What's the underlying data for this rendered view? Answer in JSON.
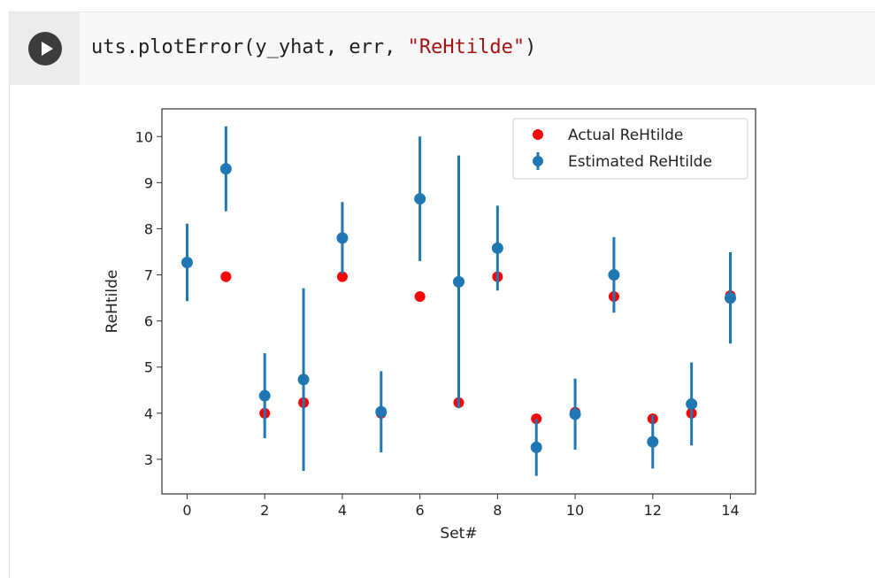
{
  "cell": {
    "run_button_icon": "play-icon",
    "code": {
      "prefix": "uts.plotError(y_yhat, err, ",
      "string_arg": "\"ReHtilde\"",
      "suffix": ")"
    }
  },
  "chart_data": {
    "type": "scatter",
    "xlabel": "Set#",
    "ylabel": "ReHtilde",
    "xlim": [
      -0.65,
      14.65
    ],
    "ylim": [
      2.25,
      10.6
    ],
    "xticks": [
      0,
      2,
      4,
      6,
      8,
      10,
      12,
      14
    ],
    "yticks": [
      3,
      4,
      5,
      6,
      7,
      8,
      9,
      10
    ],
    "grid": false,
    "legend_position": "top-right",
    "series": [
      {
        "name": "Actual ReHtilde",
        "color": "#ff0000",
        "marker": "circle",
        "x": [
          0,
          1,
          2,
          3,
          4,
          5,
          6,
          7,
          8,
          9,
          10,
          11,
          12,
          13,
          14
        ],
        "y": [
          7.27,
          6.96,
          4.0,
          4.23,
          6.96,
          4.0,
          6.53,
          4.23,
          6.96,
          3.88,
          4.02,
          6.53,
          3.88,
          4.0,
          6.55
        ]
      },
      {
        "name": "Estimated ReHtilde",
        "color": "#1f77b4",
        "marker": "circle",
        "error_bars": true,
        "x": [
          0,
          1,
          2,
          3,
          4,
          5,
          6,
          7,
          8,
          9,
          10,
          11,
          12,
          13,
          14
        ],
        "y": [
          7.27,
          9.3,
          4.38,
          4.73,
          7.8,
          4.03,
          8.65,
          6.85,
          7.58,
          3.26,
          3.98,
          7.0,
          3.38,
          4.2,
          6.5
        ],
        "err": [
          0.84,
          0.92,
          0.92,
          1.98,
          0.78,
          0.88,
          1.35,
          2.74,
          0.92,
          0.62,
          0.77,
          0.82,
          0.58,
          0.9,
          0.99
        ]
      }
    ]
  }
}
